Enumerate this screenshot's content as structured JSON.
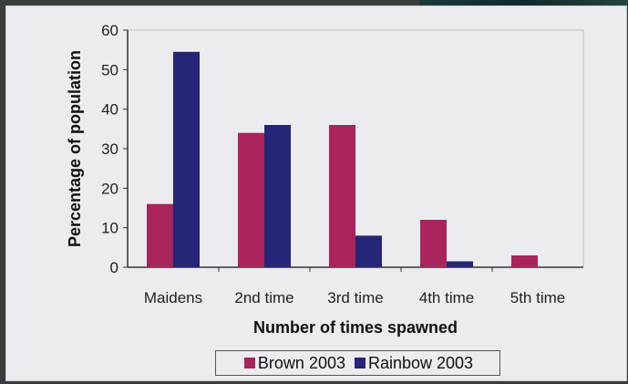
{
  "chart_data": {
    "type": "bar",
    "title": "",
    "xlabel": "Number of times spawned",
    "ylabel": "Percentage of population",
    "categories": [
      "Maidens",
      "2nd time",
      "3rd time",
      "4th time",
      "5th time"
    ],
    "series": [
      {
        "name": "Brown 2003",
        "color": "#a8245a",
        "values": [
          16,
          34,
          36,
          12,
          3
        ]
      },
      {
        "name": "Rainbow 2003",
        "color": "#262678",
        "values": [
          54.5,
          36,
          8,
          1.5,
          0
        ]
      }
    ],
    "ylim": [
      0,
      60
    ],
    "yticks": [
      0,
      10,
      20,
      30,
      40,
      50,
      60
    ],
    "grid": false,
    "legend_position": "bottom"
  }
}
